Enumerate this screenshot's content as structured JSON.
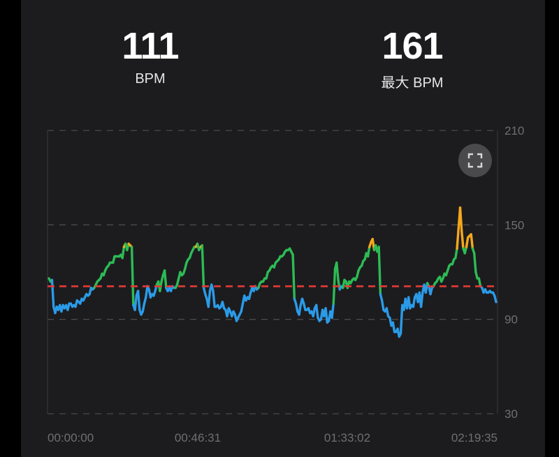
{
  "summary": {
    "avg": {
      "value": "111",
      "label": "BPM"
    },
    "max": {
      "value": "161",
      "label": "最大 BPM"
    }
  },
  "controls": {
    "expand_icon": "fullscreen-icon"
  },
  "colors": {
    "card_bg": "#1c1c1e",
    "zone_blue": "#2b9be8",
    "zone_green": "#2dbb55",
    "zone_orange": "#f5a81c",
    "avg_line": "#e53935",
    "grid": "#4a4a4a"
  },
  "chart_data": {
    "type": "line",
    "title": "",
    "xlabel": "",
    "ylabel": "",
    "ylim": [
      30,
      210
    ],
    "yticks": [
      30,
      90,
      150,
      210
    ],
    "x_ticks": [
      "00:00:00",
      "00:46:31",
      "01:33:02",
      "02:19:35"
    ],
    "x_range_seconds": [
      0,
      8375
    ],
    "average_line": 111,
    "zone_thresholds": {
      "blue_below": 111,
      "orange_above": 136
    },
    "grid": true,
    "series": [
      {
        "values": [
          116,
          114,
          115,
          98,
          94,
          98,
          96,
          99,
          95,
          99,
          97,
          99,
          96,
          100,
          100,
          98,
          99,
          98,
          102,
          101,
          100,
          103,
          102,
          104,
          106,
          105,
          106,
          110,
          109,
          110,
          112,
          114,
          115,
          116,
          119,
          118,
          121,
          123,
          124,
          126,
          126,
          126,
          130,
          130,
          130,
          130,
          131,
          129,
          136,
          138,
          134,
          138,
          137,
          136,
          99,
          96,
          105,
          108,
          96,
          93,
          95,
          100,
          104,
          111,
          109,
          104,
          106,
          105,
          108,
          112,
          114,
          108,
          114,
          118,
          121,
          110,
          108,
          110,
          108,
          111,
          110,
          110,
          112,
          116,
          120,
          118,
          119,
          122,
          126,
          128,
          129,
          132,
          134,
          136,
          136,
          138,
          134,
          136,
          137,
          110,
          106,
          103,
          98,
          108,
          112,
          108,
          98,
          98,
          99,
          97,
          98,
          101,
          97,
          96,
          92,
          97,
          95,
          92,
          95,
          93,
          89,
          91,
          93,
          95,
          100,
          105,
          102,
          104,
          103,
          107,
          110,
          108,
          111,
          109,
          110,
          113,
          114,
          114,
          116,
          116,
          120,
          121,
          123,
          124,
          123,
          126,
          127,
          128,
          130,
          130,
          131,
          133,
          134,
          134,
          135,
          133,
          131,
          103,
          100,
          95,
          93,
          99,
          103,
          100,
          96,
          96,
          97,
          94,
          95,
          92,
          97,
          99,
          91,
          89,
          90,
          96,
          92,
          97,
          88,
          89,
          95,
          91,
          100,
          122,
          126,
          115,
          109,
          111,
          110,
          115,
          114,
          110,
          114,
          113,
          115,
          116,
          115,
          117,
          121,
          123,
          124,
          127,
          128,
          132,
          130,
          136,
          139,
          141,
          134,
          137,
          133,
          136,
          106,
          102,
          96,
          95,
          97,
          92,
          91,
          86,
          88,
          82,
          82,
          84,
          79,
          81,
          99,
          96,
          103,
          97,
          104,
          97,
          99,
          98,
          104,
          106,
          101,
          107,
          98,
          107,
          112,
          107,
          113,
          111,
          106,
          110,
          111,
          113,
          114,
          116,
          117,
          114,
          116,
          119,
          118,
          121,
          124,
          125,
          125,
          128,
          129,
          135,
          148,
          161,
          146,
          135,
          132,
          136,
          142,
          143,
          144,
          135,
          132,
          120,
          116,
          116,
          111,
          110,
          107,
          109,
          107,
          107,
          108,
          107,
          107,
          105,
          101
        ]
      }
    ]
  }
}
